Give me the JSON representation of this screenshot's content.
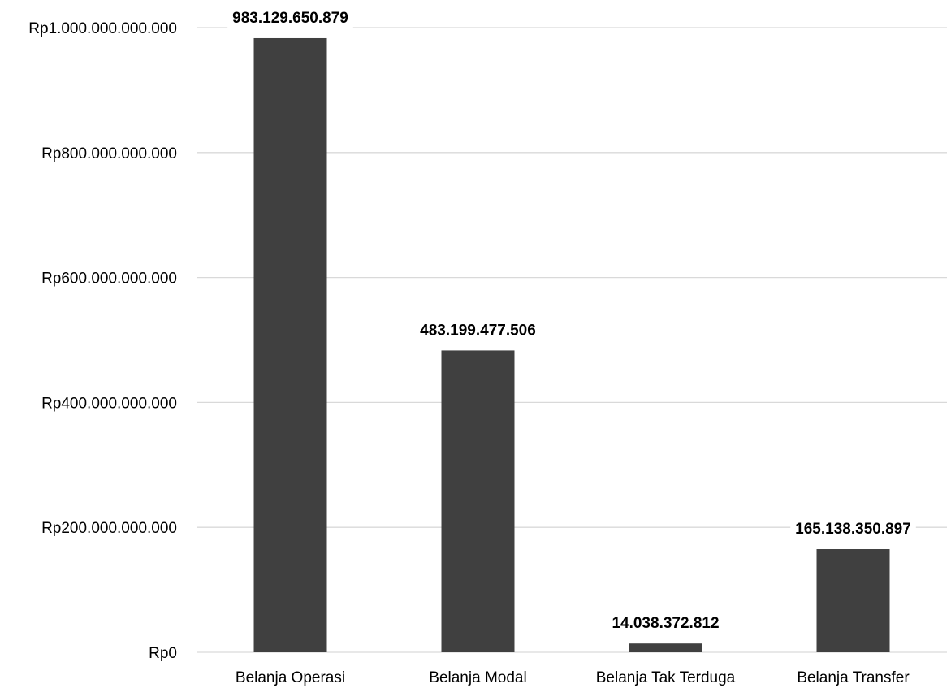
{
  "chart_data": {
    "type": "bar",
    "title": "",
    "xlabel": "",
    "ylabel": "",
    "categories": [
      "Belanja Operasi",
      "Belanja Modal",
      "Belanja Tak Terduga",
      "Belanja Transfer"
    ],
    "values": [
      983129650879,
      483199477506,
      14038372812,
      165138350897
    ],
    "data_labels": [
      "983.129.650.879",
      "483.199.477.506",
      "14.038.372.812",
      "165.138.350.897"
    ],
    "ylim": [
      0,
      1000000000000
    ],
    "y_ticks": [
      0,
      200000000000,
      400000000000,
      600000000000,
      800000000000,
      1000000000000
    ],
    "y_tick_labels": [
      "Rp0",
      "Rp200.000.000.000",
      "Rp400.000.000.000",
      "Rp600.000.000.000",
      "Rp800.000.000.000",
      "Rp1.000.000.000.000"
    ],
    "grid": true,
    "legend": "none",
    "bar_color": "#404040",
    "grid_color": "#d9d9d9"
  }
}
